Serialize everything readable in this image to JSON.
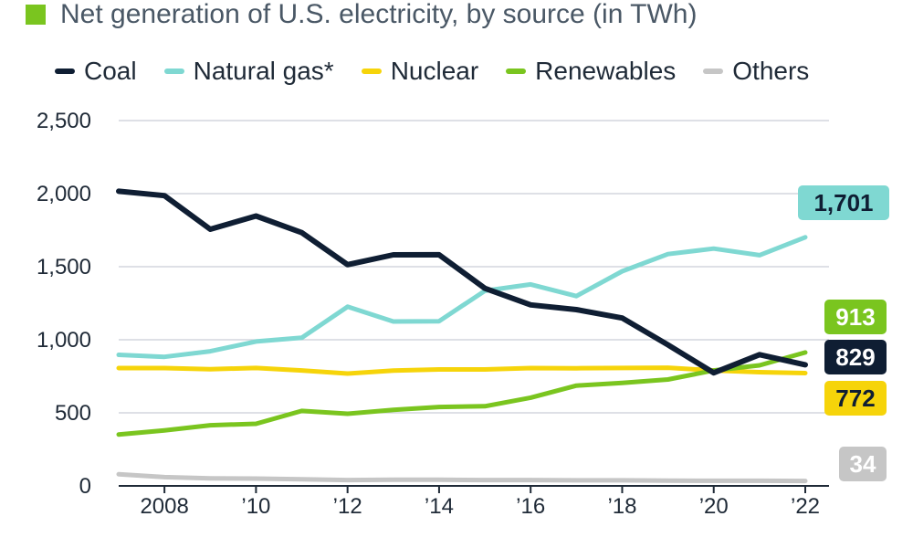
{
  "title": "Net generation of U.S. electricity, by source (in TWh)",
  "colors": {
    "title_accent": "#7ac51f",
    "grid": "#c9ced6",
    "axis": "#1f2a37"
  },
  "chart_data": {
    "type": "line",
    "title": "Net generation of U.S. electricity, by source (in TWh)",
    "xlabel": "",
    "ylabel": "",
    "x": [
      2007,
      2008,
      2009,
      2010,
      2011,
      2012,
      2013,
      2014,
      2015,
      2016,
      2017,
      2018,
      2019,
      2020,
      2021,
      2022
    ],
    "xticks": [
      2008,
      2010,
      2012,
      2014,
      2016,
      2018,
      2020,
      2022
    ],
    "xtick_labels": [
      "2008",
      "’10",
      "’12",
      "’14",
      "’16",
      "’18",
      "’20",
      "’22"
    ],
    "ylim": [
      0,
      2500
    ],
    "yticks": [
      0,
      500,
      1000,
      1500,
      2000,
      2500
    ],
    "ytick_labels": [
      "0",
      "500",
      "1,000",
      "1,500",
      "2,000",
      "2,500"
    ],
    "grid": true,
    "legend": "top",
    "series": [
      {
        "name": "Coal",
        "color": "#0f1e33",
        "label_text_color": "#ffffff",
        "values": [
          2016,
          1986,
          1756,
          1847,
          1733,
          1514,
          1581,
          1582,
          1352,
          1239,
          1206,
          1149,
          965,
          774,
          898,
          829
        ],
        "end_label": "829"
      },
      {
        "name": "Natural gas*",
        "color": "#7fd8d2",
        "label_text_color": "#0f1e33",
        "values": [
          897,
          883,
          921,
          988,
          1014,
          1226,
          1125,
          1127,
          1335,
          1379,
          1299,
          1469,
          1586,
          1624,
          1579,
          1701
        ],
        "end_label": "1,701"
      },
      {
        "name": "Nuclear",
        "color": "#f6d40a",
        "label_text_color": "#0f1e33",
        "values": [
          806,
          806,
          799,
          807,
          790,
          769,
          789,
          797,
          797,
          806,
          805,
          807,
          809,
          790,
          778,
          772
        ],
        "end_label": "772"
      },
      {
        "name": "Renewables",
        "color": "#7ac51f",
        "label_text_color": "#ffffff",
        "values": [
          352,
          380,
          415,
          425,
          513,
          494,
          520,
          540,
          545,
          604,
          686,
          705,
          728,
          790,
          825,
          913
        ],
        "end_label": "913"
      },
      {
        "name": "Others",
        "color": "#c6c6c6",
        "label_text_color": "#ffffff",
        "values": [
          80,
          60,
          52,
          50,
          45,
          40,
          42,
          42,
          40,
          40,
          38,
          38,
          36,
          35,
          35,
          34
        ],
        "end_label": "34"
      }
    ]
  }
}
